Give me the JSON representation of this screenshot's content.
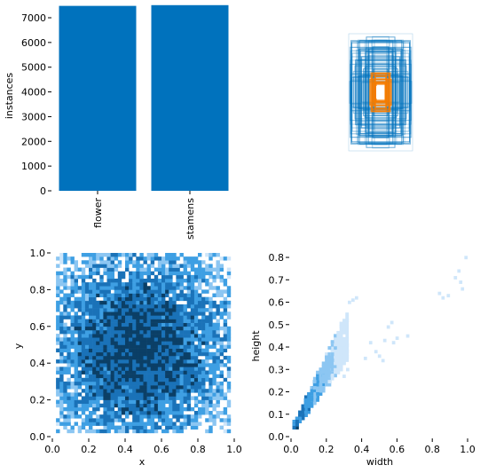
{
  "chart_data": [
    {
      "type": "bar",
      "categories": [
        "flower",
        "stamens"
      ],
      "values": [
        7480,
        7510
      ],
      "ylabel": "instances",
      "ylim": [
        0,
        7500
      ],
      "yticks": [
        "0",
        "1000",
        "2000",
        "3000",
        "4000",
        "5000",
        "6000",
        "7000"
      ],
      "color": "#0072BD"
    },
    {
      "type": "scatter",
      "description_kind": "box-overlay",
      "outer_color": "#0072BD",
      "inner_color": "#F57C00"
    },
    {
      "type": "heatmap",
      "xlabel": "x",
      "ylabel": "y",
      "xlim": [
        0,
        1
      ],
      "ylim": [
        0,
        1
      ],
      "xticks": [
        "0.0",
        "0.2",
        "0.4",
        "0.6",
        "0.8",
        "1.0"
      ],
      "yticks": [
        "0.0",
        "0.2",
        "0.4",
        "0.6",
        "0.8",
        "1.0"
      ],
      "color_scale": [
        "#cfe6fa",
        "#8cc6f2",
        "#3e9fe3",
        "#1a72b8",
        "#0b3f66"
      ]
    },
    {
      "type": "heatmap",
      "xlabel": "width",
      "ylabel": "height",
      "xlim": [
        0,
        1
      ],
      "ylim": [
        0,
        0.82
      ],
      "xticks": [
        "0.0",
        "0.2",
        "0.4",
        "0.6",
        "0.8",
        "1.0"
      ],
      "yticks": [
        "0.0",
        "0.1",
        "0.2",
        "0.3",
        "0.4",
        "0.5",
        "0.6",
        "0.7",
        "0.8"
      ],
      "color_scale": [
        "#cfe6fa",
        "#8cc6f2",
        "#3e9fe3",
        "#1a72b8",
        "#0b3f66"
      ]
    }
  ]
}
